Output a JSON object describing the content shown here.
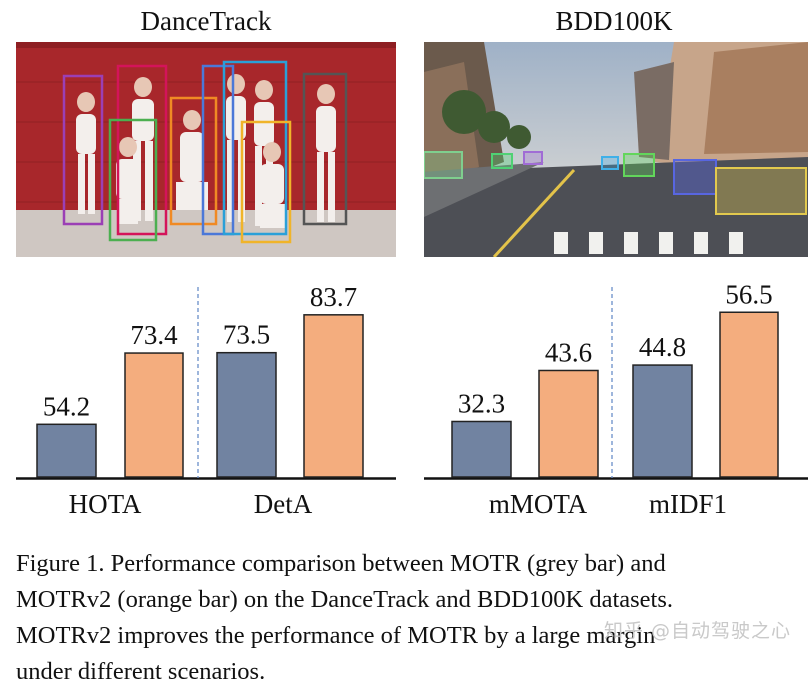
{
  "panels": {
    "left_title": "DanceTrack",
    "right_title": "BDD100K"
  },
  "colors": {
    "motr": "#7183a1",
    "motrv2": "#f4ad7e",
    "dance_bg": "#a8272b",
    "divider": "#6a8fc9"
  },
  "chart_data": [
    {
      "type": "bar",
      "dataset": "DanceTrack",
      "categories": [
        "HOTA",
        "DetA"
      ],
      "series": [
        {
          "name": "MOTR",
          "values": [
            54.2,
            73.5
          ]
        },
        {
          "name": "MOTRv2",
          "values": [
            73.4,
            83.7
          ]
        }
      ],
      "value_labels": [
        [
          "54.2",
          "73.4"
        ],
        [
          "73.5",
          "83.7"
        ]
      ],
      "ylim": [
        40,
        85
      ]
    },
    {
      "type": "bar",
      "dataset": "BDD100K",
      "categories": [
        "mMOTA",
        "mIDF1"
      ],
      "series": [
        {
          "name": "MOTR",
          "values": [
            32.3,
            44.8
          ]
        },
        {
          "name": "MOTRv2",
          "values": [
            43.6,
            56.5
          ]
        }
      ],
      "value_labels": [
        [
          "32.3",
          "43.6"
        ],
        [
          "44.8",
          "56.5"
        ]
      ],
      "ylim": [
        20,
        57
      ]
    }
  ],
  "caption": {
    "line1": "Figure 1. Performance comparison between MOTR (grey bar) and",
    "line2": "MOTRv2 (orange bar) on the DanceTrack and BDD100K datasets.",
    "line3": "MOTRv2 improves the performance of MOTR by a large margin",
    "line4": "under different scenarios."
  },
  "watermark": "知乎 @自动驾驶之心"
}
